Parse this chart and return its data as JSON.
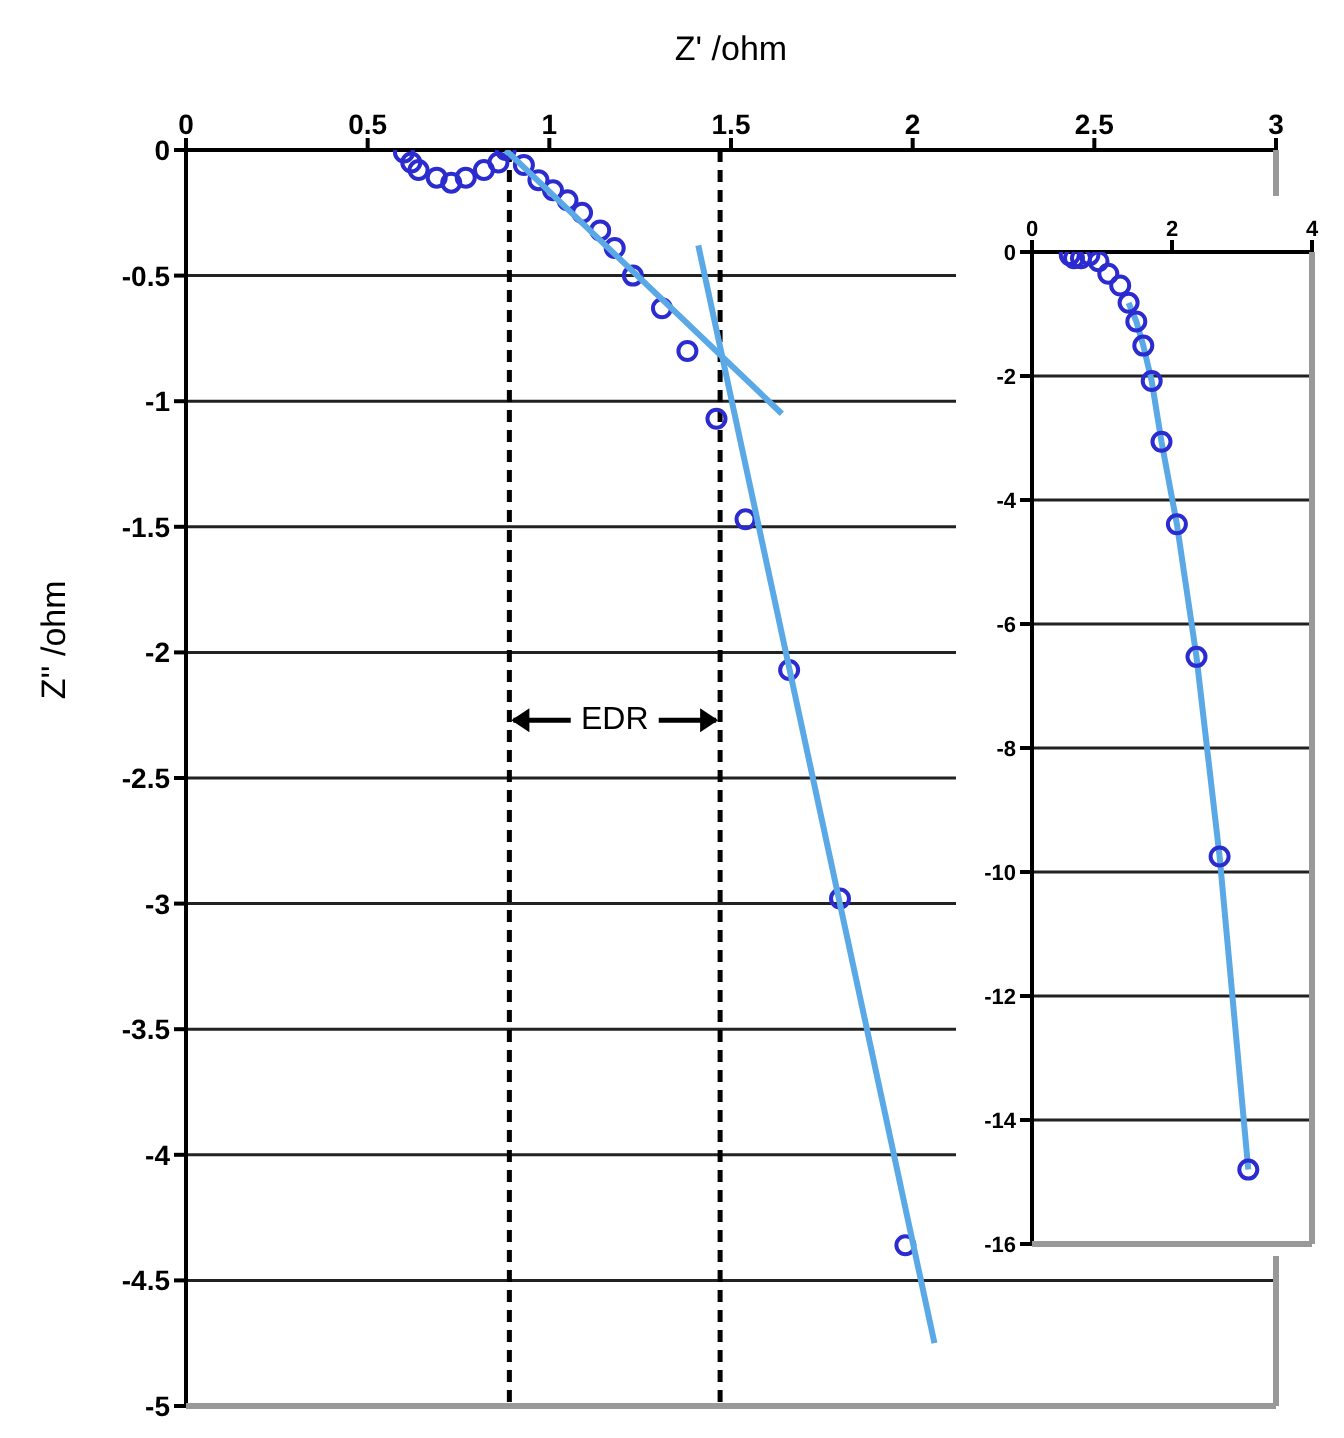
{
  "chart_data": [
    {
      "type": "scatter",
      "xlabel": "Z' /ohm",
      "ylabel": "Z'' /ohm",
      "xlim": [
        0,
        3
      ],
      "xticks": [
        0,
        0.5,
        1,
        1.5,
        2,
        2.5,
        3
      ],
      "ylim": [
        -5,
        0
      ],
      "yticks": [
        0,
        -0.5,
        -1,
        -1.5,
        -2,
        -2.5,
        -3,
        -3.5,
        -4,
        -4.5,
        -5
      ],
      "grid": "y",
      "marker": "circle",
      "series": [
        {
          "type": "scatter",
          "color": "#2b2bd0",
          "x": [
            0.6,
            0.62,
            0.64,
            0.69,
            0.73,
            0.77,
            0.82,
            0.86,
            0.88,
            0.93,
            0.97,
            1.01,
            1.05,
            1.09,
            1.14,
            1.18,
            1.23,
            1.31,
            1.38,
            1.46,
            1.54,
            1.66,
            1.8,
            1.98
          ],
          "values": [
            -0.01,
            -0.05,
            -0.08,
            -0.11,
            -0.13,
            -0.11,
            -0.08,
            -0.05,
            0,
            -0.06,
            -0.12,
            -0.16,
            -0.2,
            -0.25,
            -0.32,
            -0.39,
            -0.5,
            -0.63,
            -0.8,
            -1.07,
            -1.47,
            -2.07,
            -2.98,
            -4.36
          ]
        },
        {
          "type": "line",
          "color": "#5aa9e6",
          "marker": "none",
          "x": [
            0.88,
            1.64
          ],
          "values": [
            0,
            -1.05
          ]
        },
        {
          "type": "line",
          "color": "#5aa9e6",
          "marker": "none",
          "x": [
            1.41,
            2.06
          ],
          "values": [
            -0.38,
            -4.75
          ]
        }
      ],
      "ref_lines": [
        {
          "axis": "x",
          "value": 0.89,
          "color": "#000000",
          "line_style": "dashed"
        },
        {
          "axis": "x",
          "value": 1.47,
          "color": "#000000",
          "line_style": "dashed"
        }
      ],
      "annotations": [
        "EDR"
      ]
    },
    {
      "type": "scatter",
      "xlim": [
        0,
        4
      ],
      "xticks": [
        0,
        2,
        4
      ],
      "ylim": [
        -16,
        0
      ],
      "yticks": [
        0,
        -2,
        -4,
        -6,
        -8,
        -10,
        -12,
        -14,
        -16
      ],
      "grid": "y",
      "marker": "circle",
      "series": [
        {
          "type": "line",
          "color": "#5aa9e6",
          "marker": "none",
          "x": [
            1.38,
            1.49,
            1.59,
            1.71,
            1.85,
            2.07,
            2.35,
            2.68,
            3.09
          ],
          "values": [
            -0.82,
            -1.12,
            -1.51,
            -2.08,
            -3.06,
            -4.39,
            -6.53,
            -9.75,
            -14.8
          ]
        },
        {
          "type": "scatter",
          "color": "#2b2bd0",
          "x": [
            0.54,
            0.6,
            0.7,
            0.82,
            0.95,
            1.09,
            1.26,
            1.38,
            1.49,
            1.59,
            1.71,
            1.85,
            2.07,
            2.35,
            2.68,
            3.09
          ],
          "values": [
            -0.05,
            -0.1,
            -0.1,
            -0.05,
            -0.15,
            -0.35,
            -0.54,
            -0.82,
            -1.12,
            -1.51,
            -2.08,
            -3.06,
            -4.39,
            -6.53,
            -9.75,
            -14.8
          ]
        }
      ]
    }
  ]
}
